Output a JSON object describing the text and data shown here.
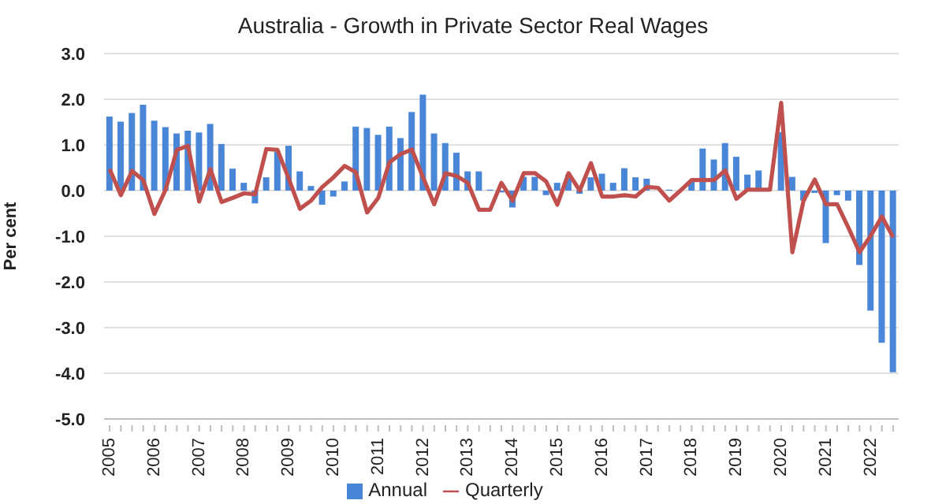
{
  "chart_data": {
    "type": "bar",
    "title": "Australia - Growth in Private Sector Real Wages",
    "ylabel": "Per cent",
    "categories": [
      "2005",
      null,
      null,
      null,
      "2006",
      null,
      null,
      null,
      "2007",
      null,
      null,
      null,
      "2008",
      null,
      null,
      null,
      "2009",
      null,
      null,
      null,
      "2010",
      null,
      null,
      null,
      "2011",
      null,
      null,
      null,
      "2012",
      null,
      null,
      null,
      "2013",
      null,
      null,
      null,
      "2014",
      null,
      null,
      null,
      "2015",
      null,
      null,
      null,
      "2016",
      null,
      null,
      null,
      "2017",
      null,
      null,
      null,
      "2018",
      null,
      null,
      null,
      "2019",
      null,
      null,
      null,
      "2020",
      null,
      null,
      null,
      "2021",
      null,
      null,
      null,
      "2022",
      null,
      null
    ],
    "series": [
      {
        "name": "Annual",
        "color": "#4a86d8",
        "values": [
          1.62,
          1.51,
          1.7,
          1.88,
          1.53,
          1.39,
          1.25,
          1.31,
          1.27,
          1.46,
          1.02,
          0.48,
          0.17,
          -0.28,
          0.29,
          0.85,
          0.98,
          0.42,
          0.1,
          -0.31,
          -0.13,
          0.2,
          1.4,
          1.37,
          1.22,
          1.4,
          1.15,
          1.72,
          2.1,
          1.25,
          1.04,
          0.83,
          0.42,
          0.42,
          0.02,
          -0.04,
          -0.37,
          0.3,
          0.3,
          -0.1,
          0.17,
          0.35,
          -0.07,
          0.29,
          0.37,
          0.17,
          0.49,
          0.29,
          0.26,
          null,
          0.02,
          null,
          0.2,
          0.92,
          0.68,
          1.04,
          0.74,
          0.35,
          0.44,
          null,
          1.28,
          0.3,
          -0.22,
          -0.05,
          -1.15,
          -0.1,
          -0.22,
          -1.63,
          -2.63,
          -3.33,
          -3.98
        ]
      },
      {
        "name": "Quarterly",
        "type": "line",
        "color": "#c0504d",
        "values": [
          0.47,
          -0.1,
          0.43,
          0.23,
          -0.51,
          0.02,
          0.89,
          0.98,
          -0.24,
          0.47,
          -0.25,
          -0.16,
          -0.06,
          -0.08,
          0.91,
          0.89,
          0.26,
          -0.4,
          -0.22,
          0.08,
          0.29,
          0.54,
          0.4,
          -0.48,
          -0.16,
          0.62,
          0.8,
          0.9,
          0.29,
          -0.3,
          0.38,
          0.32,
          0.17,
          -0.42,
          -0.42,
          0.17,
          -0.22,
          0.38,
          0.38,
          0.2,
          -0.31,
          0.38,
          0,
          0.6,
          -0.13,
          -0.13,
          -0.1,
          -0.13,
          0.08,
          0.06,
          -0.22,
          0,
          0.23,
          0.23,
          0.23,
          0.44,
          -0.18,
          0.02,
          0.02,
          0.02,
          1.92,
          -1.35,
          -0.22,
          0.24,
          -0.3,
          -0.3,
          -0.81,
          -1.35,
          -0.99,
          -0.57,
          -1.02
        ]
      }
    ],
    "ylim": [
      -5,
      3
    ],
    "yticks": [
      {
        "value": -5,
        "label": "-5.0"
      },
      {
        "value": -4,
        "label": "-4.0"
      },
      {
        "value": -3,
        "label": "-3.0"
      },
      {
        "value": -2,
        "label": "-2.0"
      },
      {
        "value": -1,
        "label": "-1.0"
      },
      {
        "value": 0,
        "label": "0.0"
      },
      {
        "value": 1,
        "label": "1.0"
      },
      {
        "value": 2,
        "label": "2.0"
      },
      {
        "value": 3,
        "label": "3.0"
      }
    ],
    "grid": "y",
    "legend": "bottom"
  }
}
